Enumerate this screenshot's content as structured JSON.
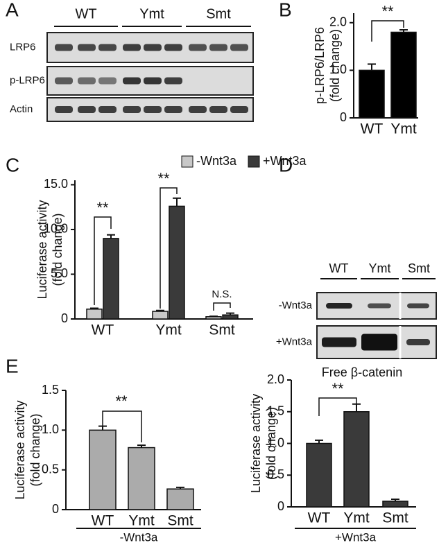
{
  "panel_labels": [
    "A",
    "B",
    "C",
    "D",
    "E"
  ],
  "blot_a": {
    "groups": [
      "WT",
      "Ymt",
      "Smt"
    ],
    "rows": [
      "LRP6",
      "p-LRP6",
      "Actin"
    ]
  },
  "blot_d": {
    "groups": [
      "WT",
      "Ymt",
      "Smt"
    ],
    "rows": [
      "-Wnt3a",
      "+Wnt3a"
    ],
    "caption": "Free β-catenin"
  },
  "chart_data": [
    {
      "type": "bar",
      "ylabel": [
        "p-LRP6/LRP6",
        "(fold change)"
      ],
      "categories": [
        "WT",
        "Ymt"
      ],
      "values": [
        1.0,
        1.8
      ],
      "errors": [
        0.13,
        0.05
      ],
      "color": "#000000",
      "ylim": [
        0,
        2.2
      ],
      "yticks": [
        0,
        {
          "value": 1,
          "label": "1.0"
        },
        {
          "value": 2,
          "label": "2.0"
        }
      ],
      "annotations": [
        "**"
      ]
    },
    {
      "type": "bar",
      "ylabel": [
        "Luciferase activity",
        "(fold change)"
      ],
      "categories": [
        "WT",
        "Ymt",
        "Smt"
      ],
      "series": [
        {
          "name": "-Wnt3a",
          "color": "#c8c8c8",
          "values": [
            1.1,
            0.85,
            0.25
          ],
          "errors": [
            0.1,
            0.1,
            0.05
          ]
        },
        {
          "name": "+Wnt3a",
          "color": "#3a3a3a",
          "values": [
            9.0,
            12.6,
            0.45
          ],
          "errors": [
            0.4,
            0.9,
            0.2
          ]
        }
      ],
      "ylim": [
        0,
        15.5
      ],
      "yticks": [
        0,
        {
          "value": 5,
          "label": "5.0"
        },
        {
          "value": 10,
          "label": "10.0"
        },
        {
          "value": 15,
          "label": "15.0"
        }
      ],
      "annotations": [
        "**",
        "**",
        "N.S."
      ]
    },
    {
      "type": "bar",
      "ylabel": [
        "Luciferase activity",
        "(fold change)"
      ],
      "xlabel": "-Wnt3a",
      "categories": [
        "WT",
        "Ymt",
        "Smt"
      ],
      "values": [
        1.0,
        0.78,
        0.26
      ],
      "errors": [
        0.05,
        0.03,
        0.02
      ],
      "color": "#ababab",
      "ylim": [
        0,
        1.5
      ],
      "yticks": [
        0,
        0.5,
        {
          "value": 1,
          "label": "1.0"
        },
        1.5
      ],
      "annotations": [
        "**"
      ]
    },
    {
      "type": "bar",
      "ylabel": [
        "Luciferase activity",
        "(fold change)"
      ],
      "xlabel": "+Wnt3a",
      "categories": [
        "WT",
        "Ymt",
        "Smt"
      ],
      "values": [
        1.0,
        1.5,
        0.09
      ],
      "errors": [
        0.05,
        0.12,
        0.03
      ],
      "color": "#3a3a3a",
      "ylim": [
        0,
        2.0
      ],
      "yticks": [
        0,
        0.5,
        {
          "value": 1,
          "label": "1.0"
        },
        1.5,
        {
          "value": 2,
          "label": "2.0"
        }
      ],
      "annotations": [
        "**"
      ]
    }
  ]
}
